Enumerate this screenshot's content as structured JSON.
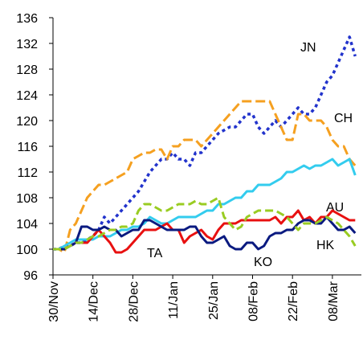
{
  "chart_data": {
    "type": "line",
    "categories": [
      "30/Nov",
      null,
      null,
      null,
      null,
      null,
      null,
      "14/Dec",
      null,
      null,
      null,
      null,
      null,
      null,
      "28/Dec",
      null,
      null,
      null,
      null,
      null,
      null,
      "11/Jan",
      null,
      null,
      null,
      null,
      null,
      null,
      "25/Jan",
      null,
      null,
      null,
      null,
      null,
      null,
      "08/Feb",
      null,
      null,
      null,
      null,
      null,
      null,
      "22/Feb",
      null,
      null,
      null,
      null,
      null,
      null,
      "08/Mar",
      null,
      null,
      null,
      null
    ],
    "ylim": [
      96,
      136
    ],
    "yticks": [
      96,
      100,
      104,
      108,
      112,
      116,
      120,
      124,
      128,
      132,
      136
    ],
    "series": [
      {
        "name": "JN",
        "color": "#2233cc",
        "values": [
          100,
          100,
          100.5,
          100.5,
          101,
          101,
          101.5,
          102,
          103,
          105,
          104,
          105,
          106,
          107,
          108,
          109,
          110.5,
          112,
          113,
          114,
          114,
          115,
          114,
          114,
          113,
          115,
          115,
          116,
          117,
          118,
          118.5,
          119,
          119,
          120,
          121,
          121,
          119,
          118,
          119,
          120,
          119,
          120,
          121,
          122,
          121,
          121,
          122,
          124,
          126,
          127,
          129,
          131,
          133,
          130
        ]
      },
      {
        "name": "CH",
        "color": "#f5a020",
        "values": [
          100,
          100,
          99.5,
          103,
          104,
          106,
          108,
          109,
          110,
          110,
          110.5,
          111,
          111.5,
          112,
          114,
          114.5,
          115,
          115,
          115.5,
          115.5,
          114,
          116,
          116,
          117,
          117,
          117,
          116,
          117,
          118,
          119,
          120,
          121,
          122,
          123,
          123,
          123,
          123,
          123,
          123,
          121,
          119,
          117,
          117,
          121,
          121,
          120,
          120,
          120,
          119,
          117,
          116,
          116,
          114,
          113
        ]
      },
      {
        "name": "AU",
        "color": "#33ccee",
        "values": [
          100,
          100,
          100.5,
          101,
          101.5,
          101.5,
          101.5,
          101.5,
          102,
          102,
          102,
          102.5,
          103,
          103,
          103.5,
          103.5,
          104,
          105,
          104.5,
          104,
          104,
          104.5,
          105,
          105,
          105,
          105,
          105.5,
          106,
          106,
          107,
          107,
          107.5,
          108,
          108,
          109,
          109,
          110,
          110,
          110,
          110.5,
          111,
          112,
          112,
          112.5,
          113,
          112.5,
          113,
          113,
          113.5,
          114,
          113,
          113.5,
          114,
          111.5
        ]
      },
      {
        "name": "TA",
        "color": "#e81010",
        "values": [
          100,
          100,
          100,
          100.5,
          101,
          101,
          101,
          102,
          103,
          102,
          101,
          99.5,
          99.5,
          100,
          101,
          102,
          103,
          103,
          103,
          103.5,
          104,
          103,
          103,
          101,
          102,
          102.5,
          103,
          102,
          101.5,
          103,
          104,
          104,
          104,
          104.5,
          104.5,
          104.5,
          104.5,
          104.5,
          104.5,
          105,
          104,
          105,
          105,
          106,
          104.5,
          105,
          104,
          105,
          105,
          106,
          105.5,
          105,
          104.5,
          104.5
        ]
      },
      {
        "name": "KO",
        "color": "#0a1a80",
        "values": [
          100,
          100,
          100,
          100.5,
          101,
          103.5,
          103.5,
          103,
          103,
          103.5,
          103,
          103,
          102,
          102.5,
          103,
          103,
          104.5,
          104.5,
          104,
          103.5,
          103,
          103,
          103,
          103,
          103.5,
          103.5,
          102,
          101,
          101,
          101.5,
          102,
          100.5,
          100,
          100,
          101,
          101,
          100,
          100.5,
          102,
          102.5,
          102.5,
          103,
          103,
          104,
          104.5,
          104.5,
          104,
          104,
          105,
          104,
          103,
          103,
          103.5,
          102.5
        ]
      },
      {
        "name": "HK",
        "color": "#99cc22",
        "values": [
          100,
          100,
          100,
          100.5,
          101,
          101,
          101.5,
          102,
          102,
          102.5,
          103,
          103,
          103.5,
          103.5,
          104,
          106,
          107,
          107,
          106.5,
          106,
          106,
          106.5,
          107,
          107,
          107,
          107.5,
          107,
          107,
          107.5,
          108,
          105,
          104,
          103,
          103.5,
          105,
          105.5,
          106,
          106,
          106,
          106,
          105.5,
          105,
          104,
          103,
          104,
          104,
          104,
          104.5,
          105,
          104.5,
          104,
          103,
          102,
          100.5
        ]
      }
    ]
  }
}
